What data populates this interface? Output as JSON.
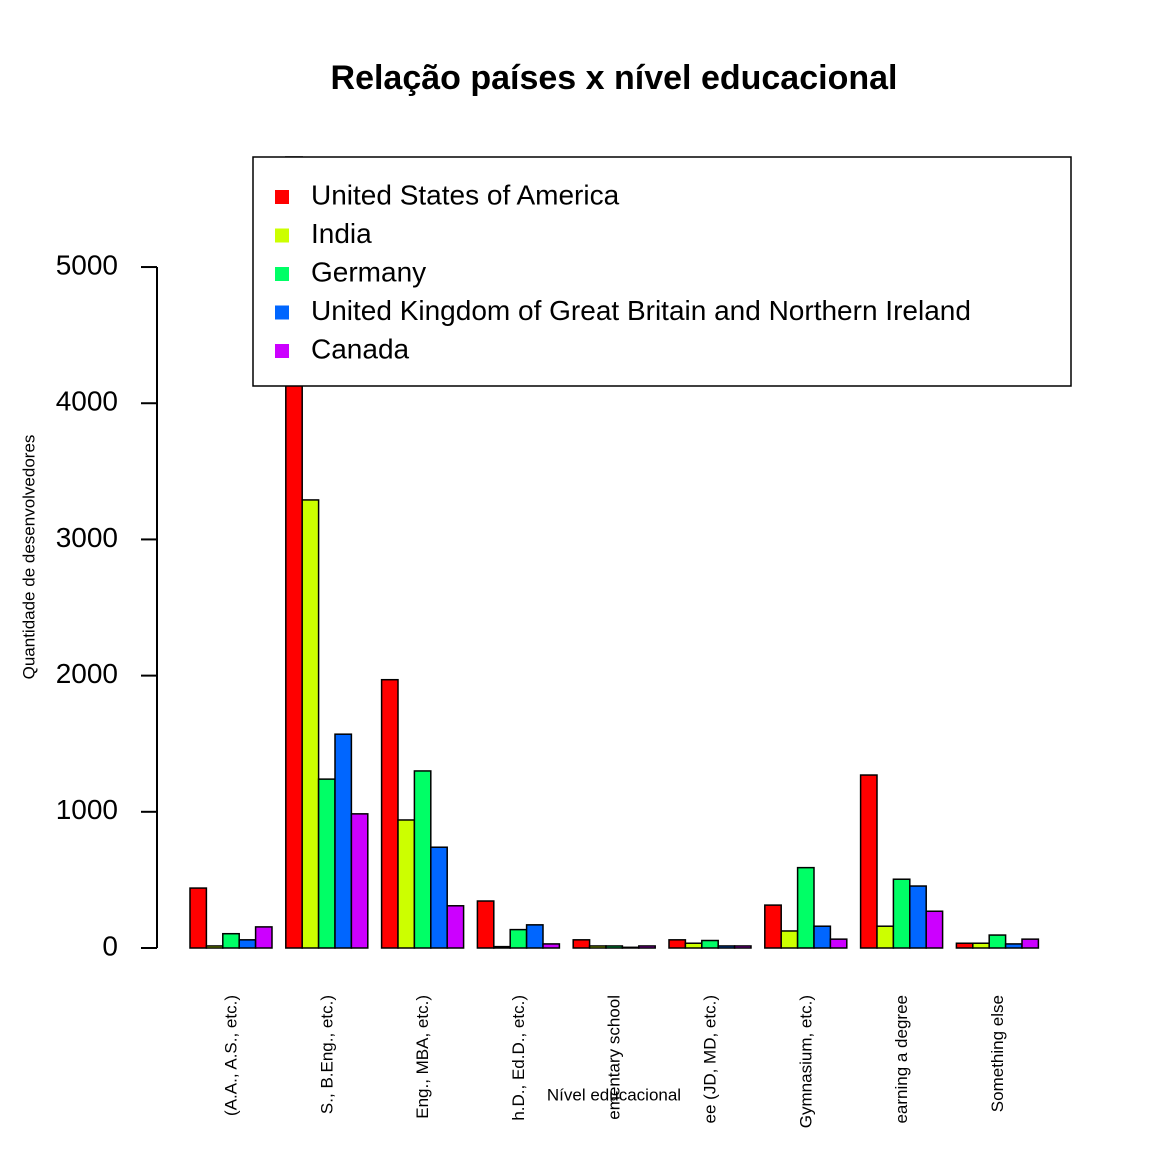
{
  "chart_data": {
    "type": "bar",
    "title": "Relação países x nível educacional",
    "x_label": "Nível educacional",
    "y_label": "Quantidade de desenvolvedores",
    "categories": [
      "(A.A., A.S., etc.)",
      "S., B.Eng., etc.)",
      "Eng., MBA, etc.)",
      "h.D., Ed.D., etc.)",
      "ementary school",
      "ee (JD, MD, etc.)",
      "Gymnasium, etc.)",
      "earning a degree",
      "Something else"
    ],
    "series": [
      {
        "name": "United States of America",
        "color": "#FF0000",
        "values": [
          440,
          5808,
          1970,
          345,
          60,
          60,
          315,
          1270,
          35
        ]
      },
      {
        "name": "India",
        "color": "#CCFF00",
        "values": [
          15,
          3290,
          940,
          10,
          15,
          35,
          125,
          160,
          35
        ]
      },
      {
        "name": "Germany",
        "color": "#00FF66",
        "values": [
          105,
          1240,
          1300,
          135,
          15,
          55,
          590,
          505,
          95
        ]
      },
      {
        "name": "United Kingdom of Great Britain and Northern Ireland",
        "color": "#0066FF",
        "values": [
          60,
          1570,
          740,
          170,
          5,
          15,
          160,
          455,
          30
        ]
      },
      {
        "name": "Canada",
        "color": "#CC00FF",
        "values": [
          155,
          985,
          310,
          30,
          15,
          15,
          65,
          270,
          65
        ]
      }
    ],
    "ylim": [
      0,
      5808
    ],
    "yticks": [
      0,
      1000,
      2000,
      3000,
      4000,
      5000
    ],
    "legend": "top-right"
  }
}
